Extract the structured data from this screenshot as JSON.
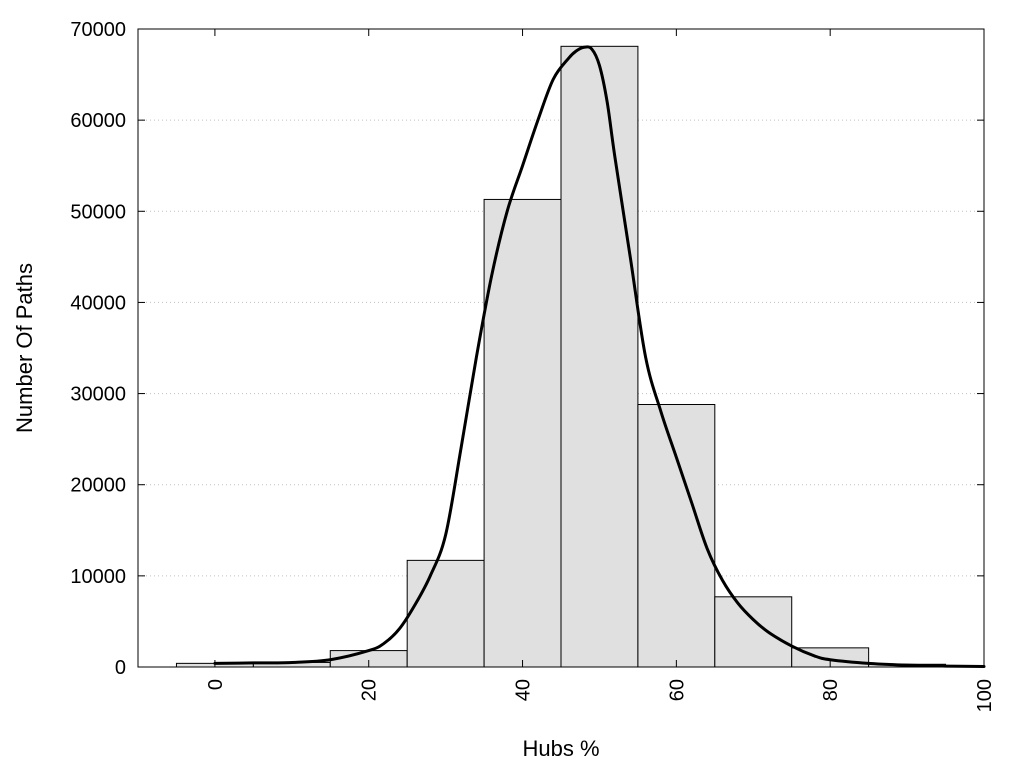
{
  "chart_data": {
    "type": "bar",
    "title": "",
    "xlabel": "Hubs %",
    "ylabel": "Number Of Paths",
    "xlim": [
      -10,
      100
    ],
    "ylim": [
      0,
      70000
    ],
    "x_ticks": [
      0,
      20,
      40,
      60,
      80,
      100
    ],
    "x_tick_labels": [
      "0",
      "20",
      "40",
      "60",
      "80",
      "100"
    ],
    "y_ticks": [
      0,
      10000,
      20000,
      30000,
      40000,
      50000,
      60000,
      70000
    ],
    "y_tick_labels": [
      "0",
      "10000",
      "20000",
      "30000",
      "40000",
      "50000",
      "60000",
      "70000"
    ],
    "grid": "horizontal dotted",
    "bin_width": 10,
    "bars": [
      {
        "x": 0,
        "value": 400
      },
      {
        "x": 10,
        "value": 500
      },
      {
        "x": 20,
        "value": 1800
      },
      {
        "x": 30,
        "value": 11700
      },
      {
        "x": 40,
        "value": 51300
      },
      {
        "x": 50,
        "value": 68100
      },
      {
        "x": 60,
        "value": 28800
      },
      {
        "x": 70,
        "value": 7700
      },
      {
        "x": 80,
        "value": 2100
      },
      {
        "x": 90,
        "value": 300
      }
    ],
    "curve": {
      "x": [
        0,
        5,
        10,
        15,
        20,
        22,
        24,
        26,
        28,
        30,
        32,
        34,
        36,
        38,
        40,
        42,
        44,
        46,
        47,
        48,
        49,
        50,
        51,
        52,
        54,
        56,
        58,
        60,
        62,
        64,
        66,
        68,
        70,
        72,
        75,
        78,
        80,
        85,
        90,
        95,
        100
      ],
      "y": [
        400,
        450,
        500,
        800,
        1800,
        2600,
        4200,
        6800,
        10000,
        14500,
        24000,
        34000,
        43000,
        50000,
        55000,
        60000,
        64500,
        66800,
        67600,
        68000,
        67800,
        66000,
        62000,
        56000,
        45000,
        34000,
        28000,
        23000,
        18000,
        13000,
        9500,
        7000,
        5200,
        3800,
        2300,
        1200,
        800,
        400,
        200,
        100,
        50
      ]
    },
    "colors": {
      "bar_fill": "#e0e0e0",
      "bar_stroke": "#000000",
      "curve": "#000000",
      "grid": "#c0c0c0"
    }
  }
}
